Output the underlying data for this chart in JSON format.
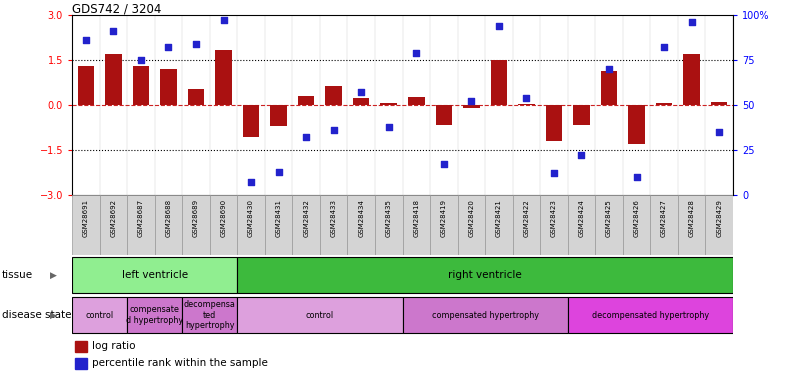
{
  "title": "GDS742 / 3204",
  "samples": [
    "GSM28691",
    "GSM28692",
    "GSM28687",
    "GSM28688",
    "GSM28689",
    "GSM28690",
    "GSM28430",
    "GSM28431",
    "GSM28432",
    "GSM28433",
    "GSM28434",
    "GSM28435",
    "GSM28418",
    "GSM28419",
    "GSM28420",
    "GSM28421",
    "GSM28422",
    "GSM28423",
    "GSM28424",
    "GSM28425",
    "GSM28426",
    "GSM28427",
    "GSM28428",
    "GSM28429"
  ],
  "log_ratio": [
    1.3,
    1.7,
    1.3,
    1.2,
    0.55,
    1.85,
    -1.05,
    -0.7,
    0.3,
    0.65,
    0.25,
    0.08,
    0.28,
    -0.65,
    -0.1,
    1.5,
    0.05,
    -1.2,
    -0.65,
    1.15,
    -1.3,
    0.07,
    1.7,
    0.1
  ],
  "percentile_rank": [
    86,
    91,
    75,
    82,
    84,
    97,
    7,
    13,
    32,
    36,
    57,
    38,
    79,
    17,
    52,
    94,
    54,
    12,
    22,
    70,
    10,
    82,
    96,
    35
  ],
  "tissue_groups": [
    {
      "label": "left ventricle",
      "start": 0,
      "end": 5,
      "color": "#90ee90"
    },
    {
      "label": "right ventricle",
      "start": 6,
      "end": 23,
      "color": "#3dba3d"
    }
  ],
  "disease_groups": [
    {
      "label": "control",
      "start": 0,
      "end": 1,
      "color": "#dda0dd"
    },
    {
      "label": "compensate\nd hypertrophy",
      "start": 2,
      "end": 3,
      "color": "#cc77cc"
    },
    {
      "label": "decompensa\nted\nhypertrophy",
      "start": 4,
      "end": 5,
      "color": "#cc77cc"
    },
    {
      "label": "control",
      "start": 6,
      "end": 11,
      "color": "#dda0dd"
    },
    {
      "label": "compensated hypertrophy",
      "start": 12,
      "end": 17,
      "color": "#cc77cc"
    },
    {
      "label": "decompensated hypertrophy",
      "start": 18,
      "end": 23,
      "color": "#dd44dd"
    }
  ],
  "bar_color": "#aa1111",
  "dot_color": "#2222cc",
  "hline_color": "#cc2222",
  "ylim": [
    -3,
    3
  ],
  "y2lim": [
    0,
    100
  ],
  "yticks_left": [
    -3,
    -1.5,
    0,
    1.5,
    3
  ],
  "yticks_right": [
    0,
    25,
    50,
    75,
    100
  ],
  "hlines_dotted": [
    1.5,
    -1.5
  ],
  "legend_items": [
    {
      "label": "log ratio",
      "color": "#aa1111"
    },
    {
      "label": "percentile rank within the sample",
      "color": "#2222cc"
    }
  ]
}
